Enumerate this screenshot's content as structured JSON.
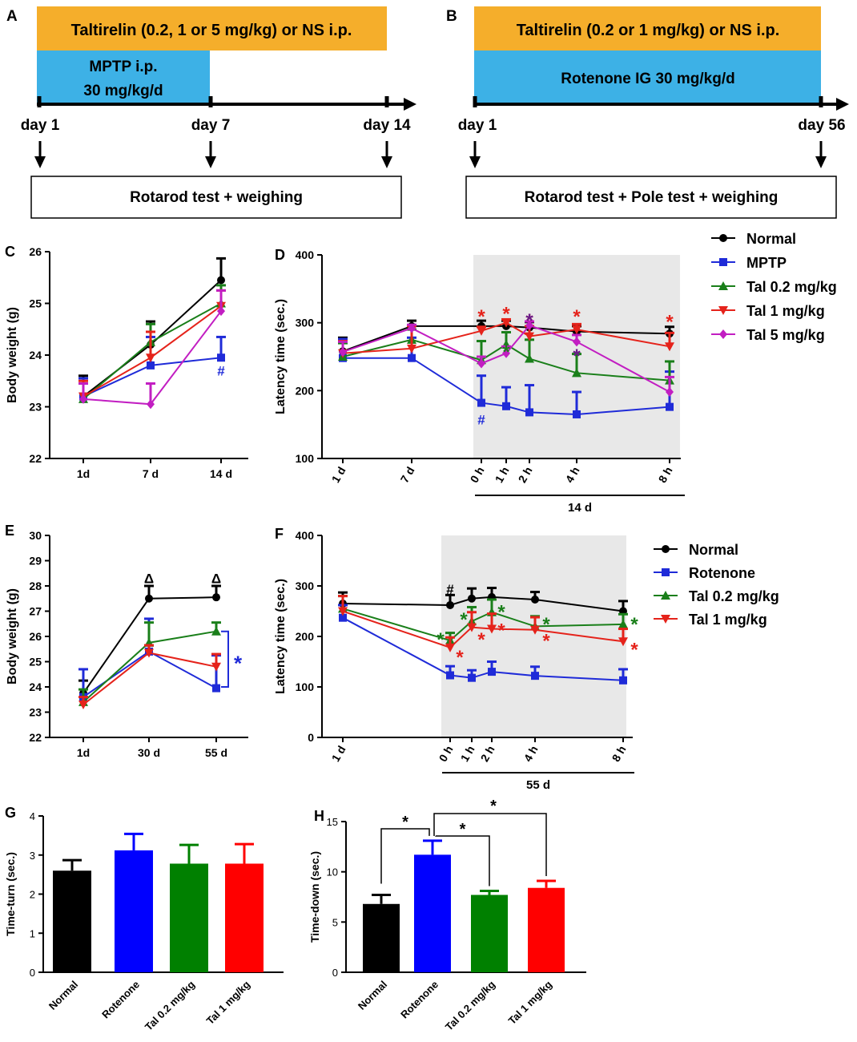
{
  "colors": {
    "orange": "#F5AE2B",
    "blue_box": "#3DB1E6",
    "black": "#000000",
    "blue": "#1F2BD8",
    "green": "#1A7F1A",
    "red": "#E5231B",
    "magenta": "#C21EC2",
    "purple": "#6A1B8A",
    "shade": "#E8E8E8",
    "bar_black": "#000000",
    "bar_blue": "#0000FF",
    "bar_green": "#008000",
    "bar_red": "#FF0000"
  },
  "panels": {
    "A": {
      "letter": "A",
      "orange_label": "Taltirelin (0.2, 1 or 5 mg/kg) or NS i.p.",
      "blue_line1": "MPTP i.p.",
      "blue_line2": "30 mg/kg/d",
      "days": [
        "day 1",
        "day 7",
        "day 14"
      ],
      "box_label": "Rotarod test + weighing"
    },
    "B": {
      "letter": "B",
      "orange_label": "Taltirelin (0.2 or 1 mg/kg) or NS i.p.",
      "blue_label": "Rotenone IG 30 mg/kg/d",
      "days": [
        "day 1",
        "day 56"
      ],
      "box_label": "Rotarod test + Pole test + weighing"
    }
  },
  "legends": {
    "mptp": [
      "Normal",
      "MPTP",
      "Tal 0.2 mg/kg",
      "Tal 1 mg/kg",
      "Tal 5 mg/kg"
    ],
    "rotenone": [
      "Normal",
      "Rotenone",
      "Tal 0.2 mg/kg",
      "Tal 1 mg/kg"
    ]
  },
  "chart_data": [
    {
      "panel": "C",
      "type": "line",
      "ylabel": "Body weight (g)",
      "ylim": [
        22,
        26
      ],
      "yticks": [
        22,
        23,
        24,
        25,
        26
      ],
      "yticks_text": [
        "22",
        "23",
        "24",
        "25",
        "26"
      ],
      "categories": [
        "1d",
        "7 d",
        "14 d"
      ],
      "series": [
        {
          "name": "Normal",
          "values": [
            23.2,
            24.2,
            25.45
          ],
          "err": [
            0.4,
            0.45,
            0.42
          ]
        },
        {
          "name": "MPTP",
          "values": [
            23.2,
            23.8,
            23.95
          ],
          "err": [
            0.35,
            0.55,
            0.4
          ]
        },
        {
          "name": "Tal 0.2 mg/kg",
          "values": [
            23.15,
            24.25,
            25.0
          ],
          "err": [
            0.3,
            0.35,
            0.35
          ]
        },
        {
          "name": "Tal 1 mg/kg",
          "values": [
            23.2,
            23.95,
            24.95
          ],
          "err": [
            0.3,
            0.5,
            0.3
          ]
        },
        {
          "name": "Tal 5 mg/kg",
          "values": [
            23.15,
            23.05,
            24.85
          ],
          "err": [
            0.3,
            0.4,
            0.4
          ]
        }
      ],
      "annotations": [
        {
          "text": "#",
          "color": "blue",
          "cat": 2,
          "value": 23.7
        }
      ]
    },
    {
      "panel": "D",
      "type": "line",
      "ylabel": "Latency time (sec.)",
      "ylim": [
        100,
        400
      ],
      "yticks": [
        100,
        200,
        300,
        400
      ],
      "yticks_text": [
        "100",
        "200",
        "300",
        "400"
      ],
      "xticks": [
        "1 d",
        "7 d",
        "0 h",
        "1 h",
        "2 h",
        "4 h",
        "8 h"
      ],
      "group_label": "14 d",
      "series": [
        {
          "name": "Normal",
          "values": [
            258,
            295,
            295,
            295,
            293,
            287,
            284
          ],
          "err": [
            20,
            8,
            8,
            8,
            8,
            8,
            10
          ]
        },
        {
          "name": "MPTP",
          "values": [
            248,
            248,
            182,
            177,
            168,
            165,
            176
          ],
          "err": [
            28,
            30,
            40,
            28,
            40,
            33,
            52
          ]
        },
        {
          "name": "Tal 0.2 mg/kg",
          "values": [
            250,
            275,
            245,
            268,
            247,
            226,
            215
          ],
          "err": [
            20,
            15,
            28,
            18,
            28,
            28,
            28
          ]
        },
        {
          "name": "Tal 1 mg/kg",
          "values": [
            255,
            262,
            288,
            300,
            280,
            290,
            265
          ],
          "err": [
            18,
            33,
            6,
            5,
            15,
            8,
            20
          ]
        },
        {
          "name": "Tal 5 mg/kg",
          "values": [
            257,
            292,
            240,
            255,
            296,
            272,
            198
          ],
          "err": [
            15,
            5,
            10,
            10,
            6,
            10,
            22
          ]
        }
      ],
      "annotations": [
        {
          "text": "#",
          "color": "blue",
          "tick": 2,
          "value": 157
        },
        {
          "text": "*",
          "color": "red",
          "tick": 2,
          "value": 314
        },
        {
          "text": "*",
          "color": "red",
          "tick": 3,
          "value": 318
        },
        {
          "text": "*",
          "color": "red",
          "tick": 4,
          "value": 308
        },
        {
          "text": "*",
          "color": "purple",
          "tick": 4,
          "value": 308
        },
        {
          "text": "*",
          "color": "red",
          "tick": 5,
          "value": 314
        },
        {
          "text": "*",
          "color": "purple",
          "tick": 5,
          "value": 256
        },
        {
          "text": "*",
          "color": "green",
          "tick": 3,
          "value": 262
        },
        {
          "text": "*",
          "color": "red",
          "tick": 6,
          "value": 306
        }
      ]
    },
    {
      "panel": "E",
      "type": "line",
      "ylabel": "Body weight (g)",
      "ylim": [
        22,
        30
      ],
      "yticks": [
        22,
        23,
        24,
        25,
        26,
        27,
        28,
        29,
        30
      ],
      "yticks_text": [
        "22",
        "23",
        "24",
        "25",
        "26",
        "27",
        "28",
        "29",
        "30"
      ],
      "categories": [
        "1d",
        "30 d",
        "55 d"
      ],
      "series": [
        {
          "name": "Normal",
          "values": [
            23.75,
            27.5,
            27.55
          ],
          "err": [
            0.5,
            0.5,
            0.45
          ]
        },
        {
          "name": "Rotenone",
          "values": [
            23.6,
            25.4,
            23.95
          ],
          "err": [
            1.1,
            1.3,
            1.3
          ]
        },
        {
          "name": "Tal 0.2 mg/kg",
          "values": [
            23.4,
            25.75,
            26.2
          ],
          "err": [
            0.5,
            0.8,
            0.35
          ]
        },
        {
          "name": "Tal 1 mg/kg",
          "values": [
            23.3,
            25.35,
            24.8
          ],
          "err": [
            0.3,
            0.3,
            0.5
          ]
        }
      ],
      "annotations": [
        {
          "text": "Δ",
          "color": "black",
          "cat": 1,
          "value": 28.3
        },
        {
          "text": "Δ",
          "color": "black",
          "cat": 2,
          "value": 28.3
        },
        {
          "text": "*",
          "color": "blue",
          "bracket": true
        }
      ]
    },
    {
      "panel": "F",
      "type": "line",
      "ylabel": "Latency time (sec.)",
      "ylim": [
        0,
        400
      ],
      "yticks": [
        0,
        100,
        200,
        300,
        400
      ],
      "yticks_text": [
        "0",
        "100",
        "200",
        "300",
        "400"
      ],
      "xticks": [
        "1 d",
        "0 h",
        "1 h",
        "2 h",
        "4 h",
        "8 h"
      ],
      "group_label": "55 d",
      "series": [
        {
          "name": "Normal",
          "values": [
            265,
            262,
            275,
            278,
            273,
            250
          ],
          "err": [
            22,
            20,
            20,
            18,
            15,
            20
          ]
        },
        {
          "name": "Rotenone",
          "values": [
            237,
            123,
            118,
            130,
            122,
            113
          ],
          "err": [
            25,
            18,
            15,
            20,
            18,
            22
          ]
        },
        {
          "name": "Tal 0.2 mg/kg",
          "values": [
            255,
            192,
            230,
            248,
            220,
            224
          ],
          "err": [
            25,
            15,
            28,
            25,
            20,
            20
          ]
        },
        {
          "name": "Tal 1 mg/kg",
          "values": [
            250,
            178,
            218,
            215,
            213,
            190
          ],
          "err": [
            30,
            20,
            30,
            30,
            25,
            25
          ]
        }
      ],
      "annotations": [
        {
          "text": "#",
          "color": "black",
          "tick": 1,
          "value": 294
        },
        {
          "text": "*",
          "color": "green",
          "tick": 1,
          "dx": -12,
          "value": 200
        },
        {
          "text": "*",
          "color": "red",
          "tick": 1,
          "dx": 12,
          "value": 165
        },
        {
          "text": "*",
          "color": "green",
          "tick": 2,
          "dx": -10,
          "value": 240
        },
        {
          "text": "*",
          "color": "red",
          "tick": 2,
          "dx": 12,
          "value": 200
        },
        {
          "text": "*",
          "color": "green",
          "tick": 3,
          "dx": 12,
          "value": 255
        },
        {
          "text": "*",
          "color": "red",
          "tick": 3,
          "dx": 12,
          "value": 218
        },
        {
          "text": "*",
          "color": "green",
          "tick": 4,
          "dx": 14,
          "value": 230
        },
        {
          "text": "*",
          "color": "red",
          "tick": 4,
          "dx": 14,
          "value": 198
        },
        {
          "text": "*",
          "color": "green",
          "tick": 5,
          "dx": 14,
          "value": 230
        },
        {
          "text": "*",
          "color": "red",
          "tick": 5,
          "dx": 14,
          "value": 180
        }
      ]
    },
    {
      "panel": "G",
      "type": "bar",
      "ylabel": "Time-turn (sec.)",
      "ylim": [
        0,
        4
      ],
      "yticks": [
        0,
        1,
        2,
        3,
        4
      ],
      "yticks_text": [
        "0",
        "1",
        "2",
        "3",
        "4"
      ],
      "categories": [
        "Normal",
        "Rotenone",
        "Tal 0.2 mg/kg",
        "Tal 1 mg/kg"
      ],
      "values": [
        2.6,
        3.12,
        2.78,
        2.78
      ],
      "err": [
        0.27,
        0.42,
        0.48,
        0.5
      ]
    },
    {
      "panel": "H",
      "type": "bar",
      "ylabel": "Time-down (sec.)",
      "ylim": [
        0,
        15
      ],
      "yticks": [
        0,
        5,
        10,
        15
      ],
      "yticks_text": [
        "0",
        "5",
        "10",
        "15"
      ],
      "categories": [
        "Normal",
        "Rotenone",
        "Tal 0.2 mg/kg",
        "Tal 1 mg/kg"
      ],
      "values": [
        6.8,
        11.7,
        7.7,
        8.4
      ],
      "err": [
        0.9,
        1.4,
        0.4,
        0.7
      ],
      "significance": [
        {
          "from": 0,
          "to": 1,
          "label": "*"
        },
        {
          "from": 1,
          "to": 2,
          "label": "*"
        },
        {
          "from": 1,
          "to": 3,
          "label": "*"
        }
      ]
    }
  ]
}
